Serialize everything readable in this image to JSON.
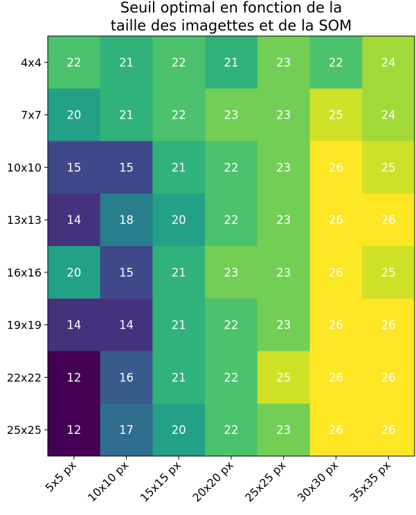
{
  "chart_data": {
    "type": "heatmap",
    "title": [
      "Seuil optimal en fonction de la",
      "taille des imagettes et de la SOM"
    ],
    "x_categories": [
      "5x5 px",
      "10x10 px",
      "15x15 px",
      "20x20 px",
      "25x25 px",
      "30x30 px",
      "35x35 px"
    ],
    "y_categories": [
      "4x4",
      "7x7",
      "10x10",
      "13x13",
      "16x16",
      "19x19",
      "22x22",
      "25x25"
    ],
    "values": [
      [
        22,
        21,
        22,
        21,
        23,
        22,
        24
      ],
      [
        20,
        21,
        22,
        23,
        23,
        25,
        24
      ],
      [
        15,
        15,
        21,
        22,
        23,
        26,
        25
      ],
      [
        14,
        18,
        20,
        22,
        23,
        26,
        26
      ],
      [
        20,
        15,
        21,
        23,
        23,
        26,
        25
      ],
      [
        14,
        14,
        21,
        22,
        23,
        26,
        26
      ],
      [
        12,
        16,
        21,
        22,
        25,
        26,
        26
      ],
      [
        12,
        17,
        20,
        22,
        23,
        26,
        26
      ]
    ],
    "colormap": "viridis",
    "color_range": [
      12,
      26
    ],
    "cell_label_color": "#ffffff",
    "xlabel": "",
    "ylabel": ""
  }
}
